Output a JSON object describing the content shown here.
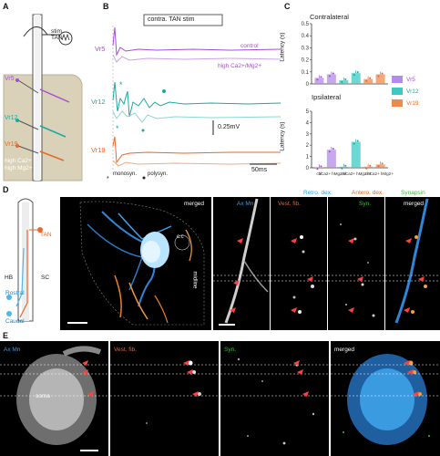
{
  "panels": {
    "a": "A",
    "b": "B",
    "c": "C",
    "d": "D",
    "e": "E"
  },
  "panel_a": {
    "stim_label": "stim",
    "tan_label": "TAN",
    "nuclei": [
      "Vr5",
      "Vr12",
      "Vr19"
    ],
    "condition_line1": "high Ca2+",
    "condition_line2": "high Mg2+"
  },
  "panel_b": {
    "header": "contra. TAN stim",
    "rows": [
      "Vr5",
      "Vr12",
      "Vr19"
    ],
    "legend_control": "control",
    "legend_high": "high Ca2+/Mg2+",
    "scale_voltage": "0.25mV",
    "scale_time": "50ms",
    "legend_mono": "monosyn.",
    "legend_poly": "polysyn.",
    "colors": {
      "Vr5": "#a64dd6",
      "Vr12": "#1ea7a0",
      "Vr19": "#e8682a"
    }
  },
  "panel_c": {
    "title_top": "Contralateral",
    "title_bottom": "Ipsilateral",
    "ylabel": "Latency (s)",
    "top_ticks": [
      "0.5",
      "0.4",
      "0.3",
      "0.2",
      "0.1",
      "0"
    ],
    "bottom_ticks": [
      "5",
      "4",
      "3",
      "2",
      "1",
      "0"
    ],
    "xlabels": [
      "ctrl",
      "hCa2+ hMg2+",
      "ctrl",
      "hCa2+ hMg2+",
      "ctrl",
      "hCa2+ hMg2+"
    ],
    "legend": [
      {
        "name": "Vr5",
        "color": "#b38bea"
      },
      {
        "name": "Vr12",
        "color": "#3cc9c2"
      },
      {
        "name": "Vr19",
        "color": "#f08a4b"
      }
    ]
  },
  "chart_data": [
    {
      "type": "bar",
      "title": "Contralateral",
      "ylabel": "Latency (s)",
      "ylim": [
        0,
        0.5
      ],
      "categories": [
        "Vr5 ctrl",
        "Vr5 hCa2+/hMg2+",
        "Vr12 ctrl",
        "Vr12 hCa2+/hMg2+",
        "Vr19 ctrl",
        "Vr19 hCa2+/hMg2+"
      ],
      "values": [
        0.05,
        0.08,
        0.03,
        0.09,
        0.04,
        0.08
      ]
    },
    {
      "type": "bar",
      "title": "Ipsilateral",
      "ylabel": "Latency (s)",
      "ylim": [
        0,
        5
      ],
      "categories": [
        "Vr5 ctrl",
        "Vr5 hCa2+/hMg2+",
        "Vr12 ctrl",
        "Vr12 hCa2+/hMg2+",
        "Vr19 ctrl",
        "Vr19 hCa2+/hMg2+"
      ],
      "values": [
        0.05,
        1.6,
        0.1,
        2.3,
        0.1,
        0.3
      ]
    }
  ],
  "panel_d": {
    "tan": "TAN",
    "hb": "HB",
    "sc": "SC",
    "rostral": "Rostral",
    "caudal": "Caudal",
    "merged": "merged",
    "cc": "c.c",
    "midline": "midline",
    "label_retro": "Retro. dex.",
    "label_antero": "Antero. dex.",
    "label_syn": "Synapsin",
    "strip_labels": [
      "Ax Mn",
      "Vest. fib.",
      "Syn.",
      "merged"
    ]
  },
  "panel_e": {
    "labels": [
      "Ax Mn",
      "Vest. fib.",
      "Syn.",
      "merged"
    ],
    "soma": "soma"
  }
}
